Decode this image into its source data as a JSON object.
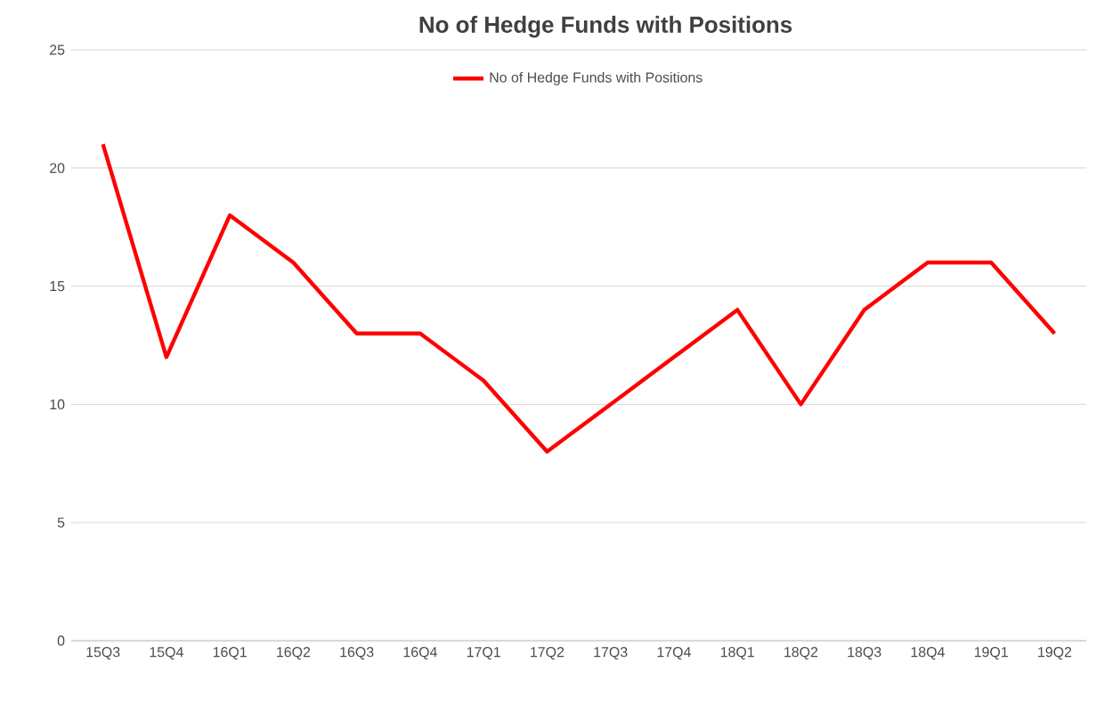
{
  "chart_data": {
    "type": "line",
    "title": "No of Hedge Funds with Positions",
    "categories": [
      "15Q3",
      "15Q4",
      "16Q1",
      "16Q2",
      "16Q3",
      "16Q4",
      "17Q1",
      "17Q2",
      "17Q3",
      "17Q4",
      "18Q1",
      "18Q2",
      "18Q3",
      "18Q4",
      "19Q1",
      "19Q2"
    ],
    "series": [
      {
        "name": "No of Hedge Funds with Positions",
        "color": "#ff0000",
        "values": [
          21,
          12,
          18,
          16,
          13,
          13,
          11,
          8,
          10,
          12,
          14,
          10,
          14,
          16,
          16,
          13
        ]
      }
    ],
    "ylim": [
      0,
      25
    ],
    "yticks": [
      0,
      5,
      10,
      15,
      20,
      25
    ],
    "grid": "y",
    "legend": "top",
    "marker": "none",
    "line_style": "solid"
  }
}
